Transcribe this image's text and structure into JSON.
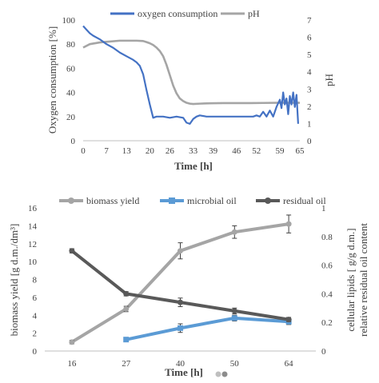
{
  "colors": {
    "oxygen": "#4472C4",
    "ph": "#A5A5A5",
    "biomass": "#A5A5A5",
    "microbial_oil": "#5B9BD5",
    "residual_oil": "#595959",
    "axis": "#BFBFBF",
    "text": "#404040"
  },
  "chart_data": [
    {
      "type": "line",
      "title": "",
      "xlabel": "Time [h]",
      "ylabel_left": "Oxygen consumption [%]",
      "ylabel_right": "pH",
      "xlim": [
        0,
        65
      ],
      "x_ticks": [
        "0",
        "7",
        "13",
        "20",
        "26",
        "33",
        "39",
        "46",
        "52",
        "59",
        "65"
      ],
      "y_left_ticks": [
        "0",
        "20",
        "40",
        "60",
        "80",
        "100"
      ],
      "y_right_ticks": [
        "0",
        "1",
        "2",
        "3",
        "4",
        "5",
        "6",
        "7"
      ],
      "ylim_left": [
        0,
        100
      ],
      "ylim_right": [
        0,
        7
      ],
      "grid": false,
      "legend_position": "top",
      "series": [
        {
          "name": "oxygen consumption",
          "axis": "left",
          "x": [
            0,
            1,
            2,
            3,
            5,
            7,
            9,
            11,
            13,
            15,
            16,
            17,
            18,
            19,
            20,
            21,
            22,
            24,
            26,
            28,
            30,
            31,
            32,
            33,
            34,
            35,
            37,
            39,
            41,
            43,
            45,
            47,
            49,
            51,
            52,
            53,
            54,
            55,
            56,
            57,
            58,
            59,
            59.5,
            60,
            60.5,
            61,
            61.5,
            62,
            62.5,
            63,
            63.5,
            64,
            64.5
          ],
          "y": [
            95,
            92,
            89,
            87,
            84,
            80,
            77,
            73,
            70,
            67,
            65,
            62,
            55,
            42,
            30,
            19,
            20,
            20,
            19,
            20,
            19,
            15,
            14,
            18,
            20,
            21,
            20,
            20,
            20,
            20,
            20,
            20,
            20,
            20,
            21,
            20,
            24,
            20,
            25,
            20,
            28,
            34,
            27,
            40,
            30,
            35,
            22,
            37,
            30,
            40,
            28,
            38,
            14
          ]
        },
        {
          "name": "pH",
          "axis": "right",
          "x": [
            0,
            2,
            5,
            8,
            11,
            14,
            16,
            18,
            19,
            20,
            21,
            22,
            23,
            24,
            25,
            26,
            27,
            28,
            29,
            30,
            31,
            32,
            33,
            35,
            38,
            42,
            46,
            50,
            54,
            58,
            62,
            65
          ],
          "y": [
            5.4,
            5.6,
            5.7,
            5.75,
            5.8,
            5.8,
            5.8,
            5.78,
            5.72,
            5.65,
            5.55,
            5.4,
            5.2,
            4.9,
            4.4,
            3.8,
            3.2,
            2.75,
            2.45,
            2.3,
            2.2,
            2.15,
            2.13,
            2.15,
            2.17,
            2.18,
            2.18,
            2.18,
            2.19,
            2.2,
            2.2,
            2.2
          ]
        }
      ]
    },
    {
      "type": "line",
      "title": "",
      "xlabel": "Time [h]",
      "ylabel_left": "biomass yield [g d.m./dm³]",
      "ylabel_right_1": "cellular lipids [ g/g d.m.]",
      "ylabel_right_2": "relative residual oil content",
      "categories": [
        "16",
        "27",
        "40",
        "50",
        "64"
      ],
      "y_left_ticks": [
        "0",
        "2",
        "4",
        "6",
        "8",
        "10",
        "12",
        "14",
        "16"
      ],
      "y_right_ticks": [
        "0",
        "0.2",
        "0.4",
        "0.6",
        "0.8",
        "1"
      ],
      "ylim_left": [
        0,
        16
      ],
      "ylim_right": [
        0,
        1
      ],
      "grid": false,
      "legend_position": "top",
      "series": [
        {
          "name": "biomass yield",
          "axis": "left",
          "x": [
            "16",
            "27",
            "40",
            "50",
            "64"
          ],
          "y": [
            1.0,
            4.7,
            11.2,
            13.3,
            14.2
          ],
          "error": [
            0.2,
            0.3,
            0.9,
            0.7,
            1.0
          ]
        },
        {
          "name": "microbial oil",
          "axis": "right",
          "x": [
            "27",
            "40",
            "50",
            "64"
          ],
          "y": [
            0.08,
            0.16,
            0.23,
            0.205
          ],
          "error": [
            0.015,
            0.03,
            0.02,
            0.02
          ]
        },
        {
          "name": "residual oil",
          "axis": "right",
          "x": [
            "16",
            "27",
            "40",
            "50",
            "64"
          ],
          "y": [
            0.7,
            0.4,
            0.34,
            0.28,
            0.22
          ],
          "error": [
            0.015,
            0.015,
            0.03,
            0.02,
            0.015
          ]
        }
      ]
    }
  ]
}
